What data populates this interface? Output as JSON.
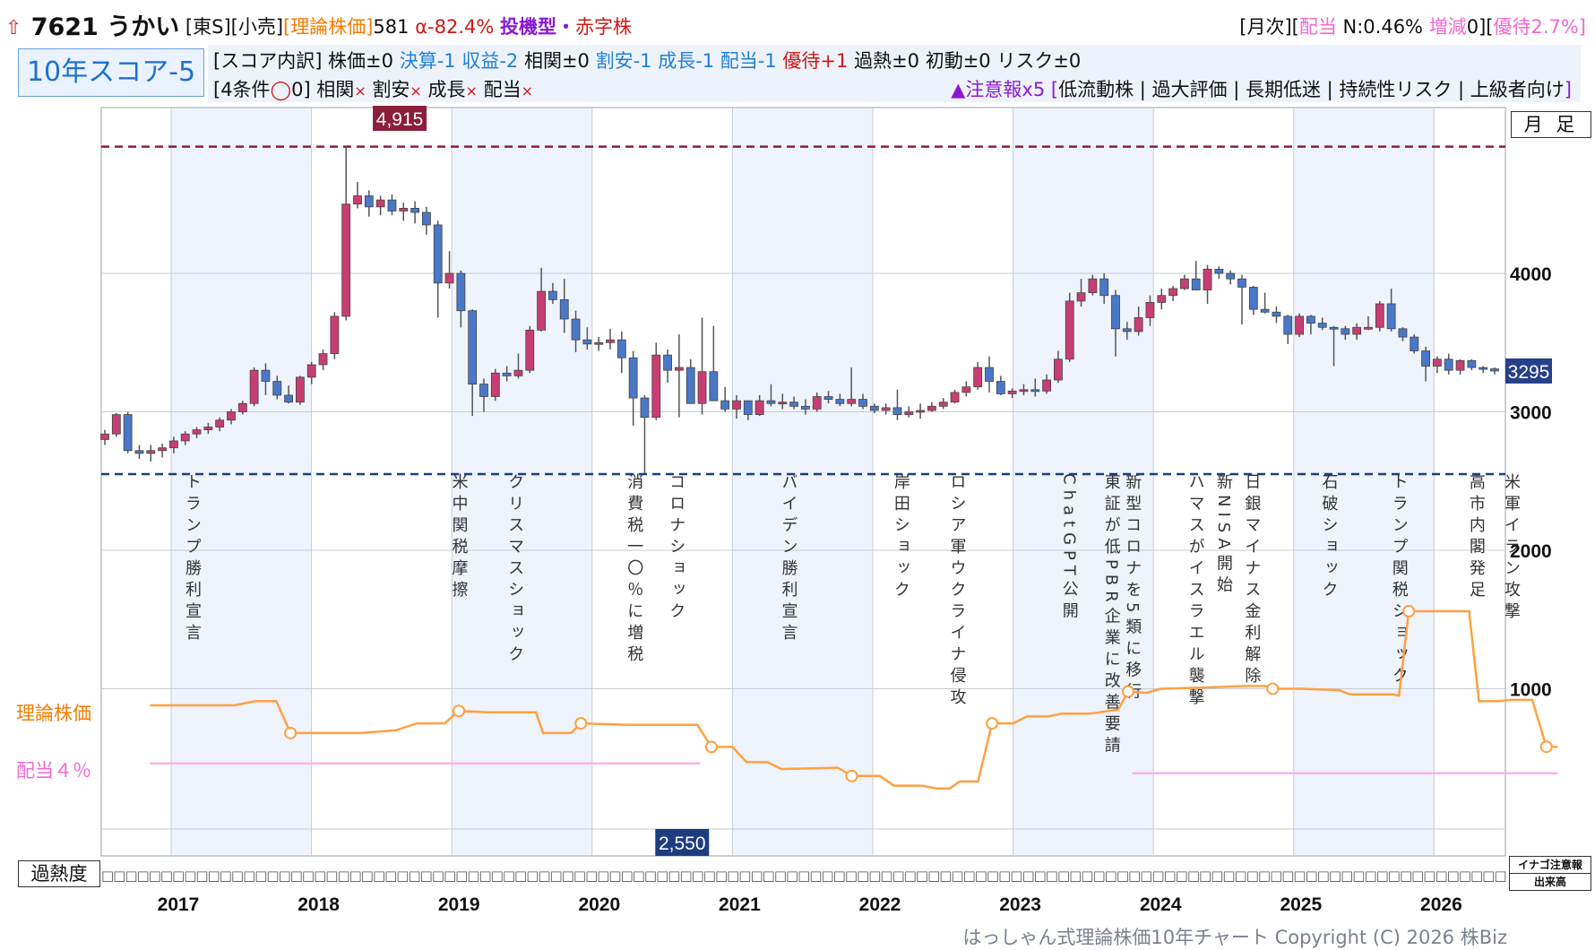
{
  "header": {
    "code_name": "7621 うかい",
    "market": "[東S][小売]",
    "theory_price_label": "[理論株価]",
    "theory_price_value": "581",
    "alpha": "α-82.4%",
    "type_tags": "投機型・",
    "deficit_tag": "赤字株",
    "right_prefix": "[月次][",
    "dividend_label": "配当",
    "dividend_value": " N:0.46% ",
    "change_label": "増減",
    "change_value": "0][",
    "yutai_text": "優待2.7%]"
  },
  "score": {
    "title": "10年スコア-5",
    "breakdown_prefix": "[スコア内訳] 株価±0 ",
    "breakdown_blue1": "決算-1 収益-2",
    "breakdown_mid": " 相関±0 ",
    "breakdown_blue2": "割安-1 成長-1 配当-1",
    "breakdown_red": " 優待+1",
    "breakdown_suffix": " 過熱±0 初動±0 リスク±0",
    "conditions_prefix": "[4条件",
    "conditions_circle": "◯",
    "conditions_mid": "0] 相関",
    "cond_x": "×",
    "cond_wariyasu": " 割安",
    "cond_seichou": " 成長",
    "cond_haitou": " 配当",
    "caution_head": "▲注意報x5",
    "caution_bracket_open": " [",
    "caution_items": "低流動株 | 過大評価 | 長期低迷 | 持続性リスク | 上級者向け",
    "caution_bracket_close": "]"
  },
  "labels": {
    "period": "月 足",
    "theory_line": "理論株価",
    "dividend_line": "配当４％",
    "overheat": "過熱度",
    "inago": "イナゴ注意報",
    "volume": "出来高",
    "copyright": "はっしゃん式理論株価10年チャート Copyright (C) 2026 株Biz"
  },
  "chart_data": {
    "type": "candlestick",
    "title": "",
    "ylim": [
      0,
      5000
    ],
    "y_ticks": [
      1000,
      2000,
      3000,
      4000
    ],
    "y_tick_labels": [
      "1000",
      "2000",
      "3000",
      "4000"
    ],
    "x_tick_labels": [
      "2017",
      "2018",
      "2019",
      "2020",
      "2021",
      "2022",
      "2023",
      "2024",
      "2025",
      "2026"
    ],
    "high_marker": {
      "value": 4915,
      "label": "4,915"
    },
    "low_marker": {
      "value": 2550,
      "label": "2,550"
    },
    "current_price": {
      "value": 3295,
      "label": "3295"
    },
    "colors": {
      "up": "#c83e72",
      "down": "#4a78c8",
      "theory": "#ffa040",
      "dividend": "#ffb0e8",
      "high": "#8a1e3c",
      "low": "#1e3c80",
      "band": "#eef3fc"
    },
    "events": [
      {
        "x": 2016.65,
        "text": "トランプ勝利宣言"
      },
      {
        "x": 2018.55,
        "text": "米中関税摩擦"
      },
      {
        "x": 2018.95,
        "text": "クリスマスショック"
      },
      {
        "x": 2019.8,
        "text": "消費税一〇％に増税"
      },
      {
        "x": 2020.1,
        "text": "コロナショック"
      },
      {
        "x": 2020.9,
        "text": "バイデン勝利宣言"
      },
      {
        "x": 2021.7,
        "text": "岸田ショック"
      },
      {
        "x": 2022.1,
        "text": "ロシア軍ウクライナ侵攻"
      },
      {
        "x": 2022.9,
        "text": "ChatGPT公開"
      },
      {
        "x": 2023.2,
        "text": "東証が低PBR企業に改善要請"
      },
      {
        "x": 2023.35,
        "text": "新型コロナを5類に移行"
      },
      {
        "x": 2023.8,
        "text": "ハマスがイスラエル襲撃"
      },
      {
        "x": 2024.0,
        "text": "新NISA開始"
      },
      {
        "x": 2024.2,
        "text": "日銀マイナス金利解除"
      },
      {
        "x": 2024.75,
        "text": "石破ショック"
      },
      {
        "x": 2025.25,
        "text": "トランプ関税ショック"
      },
      {
        "x": 2025.8,
        "text": "高市内閣発足"
      },
      {
        "x": 2026.05,
        "text": "米軍イラン攻撃"
      }
    ],
    "candles": [
      [
        2800,
        2870,
        2760,
        2840
      ],
      [
        2840,
        2990,
        2820,
        2980
      ],
      [
        2980,
        3000,
        2700,
        2720
      ],
      [
        2720,
        2760,
        2660,
        2700
      ],
      [
        2700,
        2760,
        2640,
        2720
      ],
      [
        2720,
        2770,
        2670,
        2740
      ],
      [
        2740,
        2820,
        2700,
        2790
      ],
      [
        2790,
        2860,
        2760,
        2840
      ],
      [
        2840,
        2890,
        2810,
        2870
      ],
      [
        2870,
        2920,
        2840,
        2890
      ],
      [
        2890,
        2960,
        2860,
        2940
      ],
      [
        2940,
        3020,
        2910,
        3000
      ],
      [
        3000,
        3080,
        2980,
        3060
      ],
      [
        3060,
        3320,
        3040,
        3300
      ],
      [
        3300,
        3350,
        3120,
        3220
      ],
      [
        3220,
        3260,
        3090,
        3120
      ],
      [
        3120,
        3190,
        3060,
        3070
      ],
      [
        3070,
        3260,
        3050,
        3250
      ],
      [
        3250,
        3360,
        3200,
        3340
      ],
      [
        3340,
        3450,
        3300,
        3420
      ],
      [
        3420,
        3720,
        3380,
        3690
      ],
      [
        3690,
        4915,
        3660,
        4500
      ],
      [
        4500,
        4660,
        4470,
        4560
      ],
      [
        4560,
        4600,
        4410,
        4480
      ],
      [
        4480,
        4560,
        4420,
        4530
      ],
      [
        4530,
        4570,
        4420,
        4450
      ],
      [
        4450,
        4510,
        4380,
        4470
      ],
      [
        4470,
        4520,
        4360,
        4440
      ],
      [
        4440,
        4480,
        4280,
        4350
      ],
      [
        4350,
        4380,
        3680,
        3930
      ],
      [
        3930,
        4160,
        3890,
        4000
      ],
      [
        4000,
        4020,
        3610,
        3730
      ],
      [
        3730,
        3740,
        2970,
        3200
      ],
      [
        3200,
        3240,
        3000,
        3110
      ],
      [
        3110,
        3310,
        3080,
        3280
      ],
      [
        3280,
        3330,
        3220,
        3260
      ],
      [
        3260,
        3420,
        3240,
        3300
      ],
      [
        3300,
        3620,
        3280,
        3590
      ],
      [
        3590,
        4040,
        3580,
        3870
      ],
      [
        3870,
        3930,
        3780,
        3810
      ],
      [
        3810,
        3960,
        3570,
        3670
      ],
      [
        3670,
        3730,
        3430,
        3520
      ],
      [
        3520,
        3610,
        3450,
        3490
      ],
      [
        3490,
        3540,
        3440,
        3500
      ],
      [
        3500,
        3600,
        3450,
        3520
      ],
      [
        3520,
        3580,
        3280,
        3390
      ],
      [
        3390,
        3440,
        2900,
        3100
      ],
      [
        3100,
        3120,
        2550,
        2960
      ],
      [
        2960,
        3500,
        2940,
        3410
      ],
      [
        3410,
        3450,
        3210,
        3300
      ],
      [
        3300,
        3560,
        2960,
        3320
      ],
      [
        3320,
        3380,
        3060,
        3060
      ],
      [
        3060,
        3680,
        2980,
        3290
      ],
      [
        3290,
        3620,
        3080,
        3080
      ],
      [
        3080,
        3180,
        3000,
        3020
      ],
      [
        3020,
        3120,
        2950,
        3080
      ],
      [
        3080,
        3080,
        2940,
        2980
      ],
      [
        2980,
        3120,
        2970,
        3080
      ],
      [
        3080,
        3200,
        3040,
        3060
      ],
      [
        3060,
        3130,
        3020,
        3070
      ],
      [
        3070,
        3110,
        3020,
        3040
      ],
      [
        3040,
        3090,
        2980,
        3020
      ],
      [
        3020,
        3140,
        3000,
        3110
      ],
      [
        3110,
        3150,
        3060,
        3090
      ],
      [
        3090,
        3130,
        3040,
        3060
      ],
      [
        3060,
        3320,
        3040,
        3090
      ],
      [
        3090,
        3130,
        3020,
        3040
      ],
      [
        3040,
        3060,
        2990,
        3010
      ],
      [
        3010,
        3060,
        2980,
        3030
      ],
      [
        3030,
        3160,
        2940,
        2980
      ],
      [
        2980,
        3040,
        2960,
        3000
      ],
      [
        3000,
        3060,
        2950,
        3010
      ],
      [
        3010,
        3070,
        3000,
        3040
      ],
      [
        3040,
        3100,
        3020,
        3070
      ],
      [
        3070,
        3160,
        3060,
        3140
      ],
      [
        3140,
        3220,
        3110,
        3180
      ],
      [
        3180,
        3360,
        3160,
        3320
      ],
      [
        3320,
        3400,
        3140,
        3220
      ],
      [
        3220,
        3260,
        3120,
        3130
      ],
      [
        3130,
        3170,
        3100,
        3150
      ],
      [
        3150,
        3200,
        3120,
        3160
      ],
      [
        3160,
        3240,
        3110,
        3150
      ],
      [
        3150,
        3270,
        3130,
        3230
      ],
      [
        3230,
        3440,
        3210,
        3380
      ],
      [
        3380,
        3860,
        3360,
        3800
      ],
      [
        3800,
        3960,
        3760,
        3860
      ],
      [
        3860,
        3990,
        3840,
        3960
      ],
      [
        3960,
        4000,
        3780,
        3840
      ],
      [
        3840,
        3880,
        3400,
        3600
      ],
      [
        3600,
        3650,
        3520,
        3580
      ],
      [
        3580,
        3760,
        3550,
        3680
      ],
      [
        3680,
        3840,
        3620,
        3790
      ],
      [
        3790,
        3890,
        3740,
        3840
      ],
      [
        3840,
        3910,
        3800,
        3890
      ],
      [
        3890,
        3990,
        3880,
        3960
      ],
      [
        3960,
        4090,
        3880,
        3880
      ],
      [
        3880,
        4060,
        3780,
        4030
      ],
      [
        4030,
        4050,
        3960,
        4000
      ],
      [
        4000,
        4020,
        3920,
        3960
      ],
      [
        3960,
        3990,
        3630,
        3900
      ],
      [
        3900,
        3910,
        3700,
        3740
      ],
      [
        3740,
        3860,
        3710,
        3720
      ],
      [
        3720,
        3760,
        3640,
        3690
      ],
      [
        3690,
        3700,
        3490,
        3560
      ],
      [
        3560,
        3710,
        3540,
        3690
      ],
      [
        3690,
        3700,
        3560,
        3640
      ],
      [
        3640,
        3680,
        3590,
        3610
      ],
      [
        3610,
        3620,
        3330,
        3600
      ],
      [
        3600,
        3620,
        3520,
        3560
      ],
      [
        3560,
        3640,
        3520,
        3610
      ],
      [
        3610,
        3690,
        3590,
        3610
      ],
      [
        3610,
        3800,
        3580,
        3780
      ],
      [
        3780,
        3890,
        3580,
        3600
      ],
      [
        3600,
        3610,
        3510,
        3540
      ],
      [
        3540,
        3560,
        3420,
        3440
      ],
      [
        3440,
        3470,
        3220,
        3330
      ],
      [
        3330,
        3400,
        3280,
        3380
      ],
      [
        3380,
        3420,
        3270,
        3300
      ],
      [
        3300,
        3380,
        3270,
        3370
      ],
      [
        3370,
        3380,
        3300,
        3320
      ],
      [
        3320,
        3330,
        3280,
        3310
      ],
      [
        3310,
        3320,
        3270,
        3295
      ]
    ],
    "theory_price": [
      {
        "x": 2016.35,
        "y": 880
      },
      {
        "x": 2016.95,
        "y": 880
      },
      {
        "x": 2017.1,
        "y": 910
      },
      {
        "x": 2017.25,
        "y": 910
      },
      {
        "x": 2017.35,
        "y": 680
      },
      {
        "x": 2017.85,
        "y": 680
      },
      {
        "x": 2018.1,
        "y": 700
      },
      {
        "x": 2018.25,
        "y": 750
      },
      {
        "x": 2018.45,
        "y": 750
      },
      {
        "x": 2018.55,
        "y": 840
      },
      {
        "x": 2018.75,
        "y": 830
      },
      {
        "x": 2019.1,
        "y": 830
      },
      {
        "x": 2019.15,
        "y": 680
      },
      {
        "x": 2019.35,
        "y": 680
      },
      {
        "x": 2019.42,
        "y": 750
      },
      {
        "x": 2019.75,
        "y": 740
      },
      {
        "x": 2020.25,
        "y": 740
      },
      {
        "x": 2020.35,
        "y": 580
      },
      {
        "x": 2020.5,
        "y": 580
      },
      {
        "x": 2020.6,
        "y": 470
      },
      {
        "x": 2020.75,
        "y": 470
      },
      {
        "x": 2020.85,
        "y": 420
      },
      {
        "x": 2021.25,
        "y": 430
      },
      {
        "x": 2021.35,
        "y": 370
      },
      {
        "x": 2021.55,
        "y": 370
      },
      {
        "x": 2021.65,
        "y": 300
      },
      {
        "x": 2021.85,
        "y": 300
      },
      {
        "x": 2021.95,
        "y": 280
      },
      {
        "x": 2022.05,
        "y": 280
      },
      {
        "x": 2022.12,
        "y": 330
      },
      {
        "x": 2022.25,
        "y": 330
      },
      {
        "x": 2022.35,
        "y": 750
      },
      {
        "x": 2022.5,
        "y": 750
      },
      {
        "x": 2022.6,
        "y": 800
      },
      {
        "x": 2022.75,
        "y": 800
      },
      {
        "x": 2022.85,
        "y": 820
      },
      {
        "x": 2023.05,
        "y": 820
      },
      {
        "x": 2023.25,
        "y": 850
      },
      {
        "x": 2023.32,
        "y": 980
      },
      {
        "x": 2023.45,
        "y": 970
      },
      {
        "x": 2023.55,
        "y": 1000
      },
      {
        "x": 2023.9,
        "y": 1010
      },
      {
        "x": 2024.15,
        "y": 1020
      },
      {
        "x": 2024.3,
        "y": 1020
      },
      {
        "x": 2024.35,
        "y": 1000
      },
      {
        "x": 2024.55,
        "y": 1000
      },
      {
        "x": 2024.82,
        "y": 990
      },
      {
        "x": 2024.9,
        "y": 960
      },
      {
        "x": 2025.2,
        "y": 960
      },
      {
        "x": 2025.25,
        "y": 950
      },
      {
        "x": 2025.32,
        "y": 1560
      },
      {
        "x": 2025.75,
        "y": 1560
      },
      {
        "x": 2025.82,
        "y": 910
      },
      {
        "x": 2025.95,
        "y": 910
      },
      {
        "x": 2026.05,
        "y": 920
      },
      {
        "x": 2026.2,
        "y": 920
      },
      {
        "x": 2026.3,
        "y": 581
      },
      {
        "x": 2026.38,
        "y": 580
      }
    ],
    "theory_markers": [
      2017.35,
      2018.55,
      2019.42,
      2020.35,
      2021.35,
      2022.35,
      2023.32,
      2024.35,
      2025.32,
      2026.3
    ],
    "dividend_line": [
      {
        "x0": 2016.35,
        "x1": 2020.27,
        "y": 460
      },
      {
        "x0": 2023.35,
        "x1": 2026.38,
        "y": 390
      }
    ]
  }
}
